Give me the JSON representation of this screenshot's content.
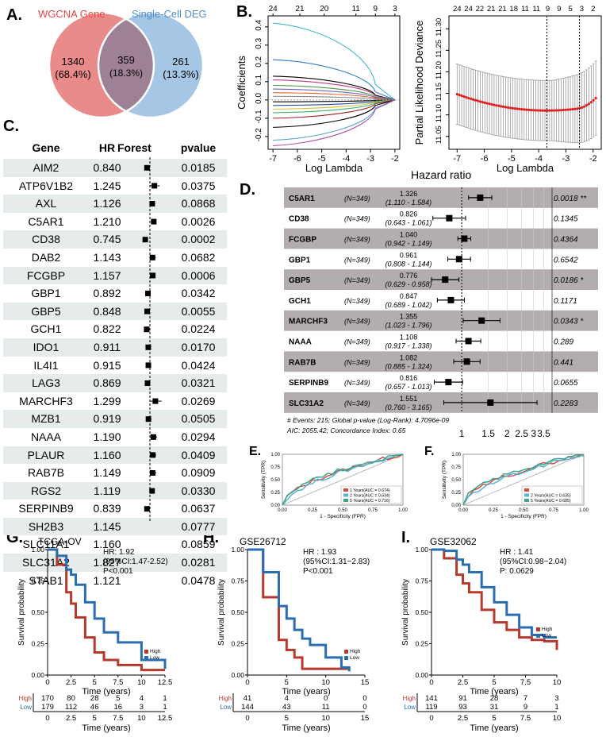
{
  "panels": {
    "A": "A.",
    "B": "B.",
    "C": "C.",
    "D": "D.",
    "E": "E.",
    "F": "F.",
    "G": "G.",
    "H": "H.",
    "I": "I."
  },
  "venn": {
    "left_label": "WGCNA Gene",
    "right_label": "Single-Cell DEG",
    "left_count": "1340",
    "left_pct": "(68.4%)",
    "mid_count": "359",
    "mid_pct": "(18.3%)",
    "right_count": "261",
    "right_pct": "(13.3%)",
    "colors": {
      "left": "#e98b8a",
      "right": "#a6c6e6",
      "overlap": "#9e8194",
      "left_text": "#e64545",
      "right_text": "#4d8fcf"
    }
  },
  "lasso_coef": {
    "top_ticks": [
      "24",
      "21",
      "20",
      "11",
      "9",
      "3"
    ],
    "x_ticks": [
      "-7",
      "-6",
      "-5",
      "-4",
      "-3",
      "-2"
    ],
    "y_ticks": [
      "-0.2",
      "-0.1",
      "0.0",
      "0.1",
      "0.2",
      "0.3",
      "0.4"
    ],
    "xlabel": "Log Lambda",
    "ylabel": "Coefficients"
  },
  "lasso_cv": {
    "top_ticks": [
      "24",
      "24",
      "22",
      "21",
      "21",
      "18",
      "11",
      "11",
      "9",
      "9",
      "5",
      "3",
      "2"
    ],
    "x_ticks": [
      "-7",
      "-6",
      "-5",
      "-4",
      "-3",
      "-2"
    ],
    "y_ticks": [
      "11.05",
      "11.10",
      "11.15",
      "11.20",
      "11.25",
      "11.30"
    ],
    "xlabel": "Log Lambda",
    "ylabel": "Partial Likelihood Deviance"
  },
  "cox_table": {
    "headers": {
      "gene": "Gene",
      "hr": "HR",
      "forest": "Forest",
      "p": "pvalue"
    },
    "x_ticks": [
      "0",
      "0.5",
      "1",
      "1.5",
      "2"
    ],
    "rows": [
      {
        "gene": "AIM2",
        "hr": "0.840",
        "p": "0.0185",
        "lo": 0.73,
        "hi": 0.97
      },
      {
        "gene": "ATP6V1B2",
        "hr": "1.245",
        "p": "0.0375",
        "lo": 1.01,
        "hi": 1.53
      },
      {
        "gene": "AXL",
        "hr": "1.126",
        "p": "0.0868",
        "lo": 0.98,
        "hi": 1.29
      },
      {
        "gene": "C5AR1",
        "hr": "1.210",
        "p": "0.0026",
        "lo": 1.07,
        "hi": 1.37
      },
      {
        "gene": "CD38",
        "hr": "0.745",
        "p": "0.0002",
        "lo": 0.64,
        "hi": 0.87
      },
      {
        "gene": "DAB2",
        "hr": "1.143",
        "p": "0.0682",
        "lo": 0.99,
        "hi": 1.32
      },
      {
        "gene": "FCGBP",
        "hr": "1.157",
        "p": "0.0006",
        "lo": 1.06,
        "hi": 1.26
      },
      {
        "gene": "GBP1",
        "hr": "0.892",
        "p": "0.0342",
        "lo": 0.8,
        "hi": 0.99
      },
      {
        "gene": "GBP5",
        "hr": "0.848",
        "p": "0.0055",
        "lo": 0.75,
        "hi": 0.95
      },
      {
        "gene": "GCH1",
        "hr": "0.822",
        "p": "0.0224",
        "lo": 0.69,
        "hi": 0.97
      },
      {
        "gene": "IDO1",
        "hr": "0.911",
        "p": "0.0170",
        "lo": 0.84,
        "hi": 0.98
      },
      {
        "gene": "IL4I1",
        "hr": "0.915",
        "p": "0.0424",
        "lo": 0.84,
        "hi": 1.0
      },
      {
        "gene": "LAG3",
        "hr": "0.869",
        "p": "0.0321",
        "lo": 0.76,
        "hi": 0.99
      },
      {
        "gene": "MARCHF3",
        "hr": "1.299",
        "p": "0.0269",
        "lo": 1.03,
        "hi": 1.64
      },
      {
        "gene": "MZB1",
        "hr": "0.919",
        "p": "0.0505",
        "lo": 0.84,
        "hi": 1.0
      },
      {
        "gene": "NAAA",
        "hr": "1.190",
        "p": "0.0294",
        "lo": 1.02,
        "hi": 1.39
      },
      {
        "gene": "PLAUR",
        "hr": "1.160",
        "p": "0.0409",
        "lo": 1.01,
        "hi": 1.34
      },
      {
        "gene": "RAB7B",
        "hr": "1.149",
        "p": "0.0909",
        "lo": 0.98,
        "hi": 1.35
      },
      {
        "gene": "RGS2",
        "hr": "1.119",
        "p": "0.0330",
        "lo": 1.01,
        "hi": 1.24
      },
      {
        "gene": "SERPINB9",
        "hr": "0.839",
        "p": "0.0637",
        "lo": 0.7,
        "hi": 1.01
      },
      {
        "gene": "SH2B3",
        "hr": "1.145",
        "p": "0.0777",
        "lo": 0.99,
        "hi": 1.33
      },
      {
        "gene": "SLC11A1",
        "hr": "1.160",
        "p": "0.0859",
        "lo": 0.98,
        "hi": 1.37
      },
      {
        "gene": "SLC31A2",
        "hr": "1.827",
        "p": "0.0281",
        "lo": 1.07,
        "hi": 3.13
      },
      {
        "gene": "STAB1",
        "hr": "1.121",
        "p": "0.0478",
        "lo": 1.0,
        "hi": 1.25
      }
    ]
  },
  "multicox": {
    "title": "Hazard ratio",
    "x_ticks": [
      "1",
      "1.5",
      "2",
      "2.5",
      "3",
      "3.5"
    ],
    "rows": [
      {
        "gene": "C5AR1",
        "n": "(N=349)",
        "hr": "1.326",
        "ci": "(1.110 - 1.584)",
        "p": "0.0018",
        "sig": "**",
        "v": 1.326,
        "lo": 1.11,
        "hi": 1.584
      },
      {
        "gene": "CD38",
        "n": "(N=349)",
        "hr": "0.826",
        "ci": "(0.643 - 1.061)",
        "p": "0.1345",
        "sig": "",
        "v": 0.826,
        "lo": 0.643,
        "hi": 1.061
      },
      {
        "gene": "FCGBP",
        "n": "(N=349)",
        "hr": "1.040",
        "ci": "(0.942 - 1.149)",
        "p": "0.4364",
        "sig": "",
        "v": 1.04,
        "lo": 0.942,
        "hi": 1.149
      },
      {
        "gene": "GBP1",
        "n": "(N=349)",
        "hr": "0.961",
        "ci": "(0.808 - 1.144)",
        "p": "0.6542",
        "sig": "",
        "v": 0.961,
        "lo": 0.808,
        "hi": 1.144
      },
      {
        "gene": "GBP5",
        "n": "(N=349)",
        "hr": "0.776",
        "ci": "(0.629 - 0.958)",
        "p": "0.0186",
        "sig": "*",
        "v": 0.776,
        "lo": 0.629,
        "hi": 0.958
      },
      {
        "gene": "GCH1",
        "n": "(N=349)",
        "hr": "0.847",
        "ci": "(0.689 - 1.042)",
        "p": "0.1171",
        "sig": "",
        "v": 0.847,
        "lo": 0.689,
        "hi": 1.042
      },
      {
        "gene": "MARCHF3",
        "n": "(N=349)",
        "hr": "1.355",
        "ci": "(1.023 - 1.796)",
        "p": "0.0343",
        "sig": "*",
        "v": 1.355,
        "lo": 1.023,
        "hi": 1.796
      },
      {
        "gene": "NAAA",
        "n": "(N=349)",
        "hr": "1.108",
        "ci": "(0.917 - 1.338)",
        "p": "0.289",
        "sig": "",
        "v": 1.108,
        "lo": 0.917,
        "hi": 1.338
      },
      {
        "gene": "RAB7B",
        "n": "(N=349)",
        "hr": "1.082",
        "ci": "(0.885 - 1.324)",
        "p": "0.441",
        "sig": "",
        "v": 1.082,
        "lo": 0.885,
        "hi": 1.324
      },
      {
        "gene": "SERPINB9",
        "n": "(N=349)",
        "hr": "0.816",
        "ci": "(0.657 - 1.013)",
        "p": "0.0655",
        "sig": "",
        "v": 0.816,
        "lo": 0.657,
        "hi": 1.013
      },
      {
        "gene": "SLC31A2",
        "n": "(N=349)",
        "hr": "1.551",
        "ci": "(0.760 - 3.165)",
        "p": "0.2283",
        "sig": "",
        "v": 1.551,
        "lo": 0.76,
        "hi": 3.165
      }
    ],
    "footer1": "# Events: 215; Global p-value (Log-Rank): 4.7096e-09",
    "footer2": "AIC: 2055.42; Concordance Index: 0.65"
  },
  "roc_e": {
    "xlabel": "1 - Specificity (FPR)",
    "ylabel": "Sensitivity (TPR)",
    "ticks": [
      "0.00",
      "0.25",
      "0.50",
      "0.75",
      "1.00"
    ],
    "legend": [
      {
        "label": "1 Years(AUC = 0.674)",
        "color": "#d9493f"
      },
      {
        "label": "2 Years(AUC = 0.634)",
        "color": "#5ab4d6"
      },
      {
        "label": "5 Years(AUC = 0.716)",
        "color": "#3aa58a"
      }
    ]
  },
  "roc_f": {
    "xlabel": "1 - Specificity (FPR)",
    "ylabel": "Sensitivity (TPR)",
    "ticks": [
      "0.00",
      "0.25",
      "0.50",
      "0.75",
      "1.00"
    ],
    "legend": [
      {
        "label": "",
        "color": "#d9493f"
      },
      {
        "label": "2 Years(AUC = 0.635)",
        "color": "#5ab4d6"
      },
      {
        "label": "5 Years(AUC = 0.685)",
        "color": "#3aa58a"
      }
    ]
  },
  "km": [
    {
      "title": "TCGA-OV",
      "hr": "HR: 1.92",
      "ci": "(95%CI:1.47-2.52)",
      "p": "P<0.001",
      "x_ticks": [
        "0",
        "2.5",
        "5",
        "7.5",
        "10",
        "12.5"
      ],
      "xmax": 12.5,
      "y_ticks": [
        "0.00",
        "0.25",
        "0.50",
        "0.75",
        "1.00"
      ],
      "xlabel": "Time (years)",
      "ylabel": "Survival probability",
      "legend": [
        "High",
        "Low"
      ],
      "risk_high": [
        "170",
        "80",
        "28",
        "5",
        "4",
        "1"
      ],
      "risk_low": [
        "179",
        "112",
        "46",
        "16",
        "3",
        "1"
      ]
    },
    {
      "title": "GSE26712",
      "hr": "HR : 1.93",
      "ci": "(95%CI:1.31−2.83)",
      "p": "P<0.001",
      "x_ticks": [
        "0",
        "5",
        "10",
        "15"
      ],
      "xmax": 15,
      "y_ticks": [
        "0.00",
        "0.25",
        "0.50",
        "0.75",
        "1.00"
      ],
      "xlabel": "Time (years)",
      "ylabel": "Survival probability",
      "legend": [
        "High",
        "Low"
      ],
      "risk_high": [
        "41",
        "4",
        "0",
        "0"
      ],
      "risk_low": [
        "144",
        "43",
        "11",
        "0"
      ]
    },
    {
      "title": "GSE32062",
      "hr": "HR : 1.41",
      "ci": "(95%CI:0.98−2.04)",
      "p": "P: 0.0629",
      "x_ticks": [
        "0",
        "2.5",
        "5",
        "7.5",
        "10"
      ],
      "xmax": 10,
      "y_ticks": [
        "0.00",
        "0.25",
        "0.50",
        "0.75",
        "1.00"
      ],
      "xlabel": "Time (years)",
      "ylabel": "Survival probability",
      "legend": [
        "High",
        "Low"
      ],
      "risk_high": [
        "141",
        "91",
        "28",
        "7",
        "3"
      ],
      "risk_low": [
        "119",
        "93",
        "31",
        "9",
        "1"
      ]
    }
  ],
  "chart_data": [
    {
      "type": "bar",
      "title": "",
      "categories": [
        "AIM2",
        "ATP6V1B2",
        "AXL",
        "C5AR1",
        "CD38",
        "DAB2",
        "FCGBP",
        "GBP1",
        "GBP5",
        "GCH1",
        "IDO1",
        "IL4I1",
        "LAG3",
        "MARCHF3",
        "MZB1",
        "NAAA",
        "PLAUR",
        "RAB7B",
        "RGS2",
        "SERPINB9",
        "SH2B3",
        "SLC11A1",
        "SLC31A2",
        "STAB1"
      ],
      "series": [
        {
          "name": "HR",
          "values": [
            0.84,
            1.245,
            1.126,
            1.21,
            0.745,
            1.143,
            1.157,
            0.892,
            0.848,
            0.822,
            0.911,
            0.915,
            0.869,
            1.299,
            0.919,
            1.19,
            1.16,
            1.149,
            1.119,
            0.839,
            1.145,
            1.16,
            1.827,
            1.121
          ]
        }
      ],
      "xlim": [
        0,
        2
      ]
    },
    {
      "type": "scatter",
      "title": "Hazard ratio",
      "categories": [
        "C5AR1",
        "CD38",
        "FCGBP",
        "GBP1",
        "GBP5",
        "GCH1",
        "MARCHF3",
        "NAAA",
        "RAB7B",
        "SERPINB9",
        "SLC31A2"
      ],
      "series": [
        {
          "name": "HR",
          "values": [
            1.326,
            0.826,
            1.04,
            0.961,
            0.776,
            0.847,
            1.355,
            1.108,
            1.082,
            0.816,
            1.551
          ]
        }
      ]
    },
    {
      "type": "line",
      "title": "",
      "xlabel": "1 - Specificity (FPR)",
      "ylabel": "Sensitivity (TPR)",
      "series": [
        {
          "name": "1 Years(AUC = 0.674)",
          "values": []
        },
        {
          "name": "2 Years(AUC = 0.634)",
          "values": []
        },
        {
          "name": "5 Years(AUC = 0.716)",
          "values": []
        }
      ]
    },
    {
      "type": "line",
      "title": "",
      "xlabel": "1 - Specificity (FPR)",
      "ylabel": "Sensitivity (TPR)",
      "series": [
        {
          "name": "2 Years(AUC = 0.635)",
          "values": []
        },
        {
          "name": "5 Years(AUC = 0.685)",
          "values": []
        }
      ]
    },
    {
      "type": "line",
      "title": "TCGA-OV",
      "xlabel": "Time (years)",
      "ylabel": "Survival probability",
      "x": [
        0,
        1,
        2,
        2.5,
        3,
        4,
        5,
        6,
        7.5,
        10,
        12.5
      ],
      "series": [
        {
          "name": "High",
          "values": [
            1.0,
            0.88,
            0.66,
            0.57,
            0.46,
            0.3,
            0.18,
            0.12,
            0.08,
            0.04,
            0.04
          ]
        },
        {
          "name": "Low",
          "values": [
            1.0,
            0.95,
            0.84,
            0.8,
            0.72,
            0.58,
            0.45,
            0.34,
            0.26,
            0.12,
            0.05
          ]
        }
      ]
    },
    {
      "type": "line",
      "title": "GSE26712",
      "xlabel": "Time (years)",
      "ylabel": "Survival probability",
      "x": [
        0,
        2,
        4,
        5,
        6,
        7,
        8,
        10,
        12,
        13
      ],
      "series": [
        {
          "name": "High",
          "values": [
            1.0,
            0.62,
            0.28,
            0.2,
            0.14,
            0.05,
            0.05,
            0.05,
            0.05,
            0.05
          ]
        },
        {
          "name": "Low",
          "values": [
            1.0,
            0.82,
            0.55,
            0.45,
            0.36,
            0.29,
            0.24,
            0.14,
            0.06,
            0.03
          ]
        }
      ]
    },
    {
      "type": "line",
      "title": "GSE32062",
      "xlabel": "Time (years)",
      "ylabel": "Survival probability",
      "x": [
        0,
        1,
        2,
        2.5,
        3,
        4,
        5,
        6,
        7,
        8,
        9,
        10
      ],
      "series": [
        {
          "name": "High",
          "values": [
            1.0,
            0.93,
            0.8,
            0.73,
            0.66,
            0.52,
            0.42,
            0.36,
            0.3,
            0.28,
            0.27,
            0.2
          ]
        },
        {
          "name": "Low",
          "values": [
            1.0,
            0.99,
            0.92,
            0.88,
            0.82,
            0.7,
            0.58,
            0.48,
            0.38,
            0.32,
            0.3,
            0.3
          ]
        }
      ]
    }
  ]
}
